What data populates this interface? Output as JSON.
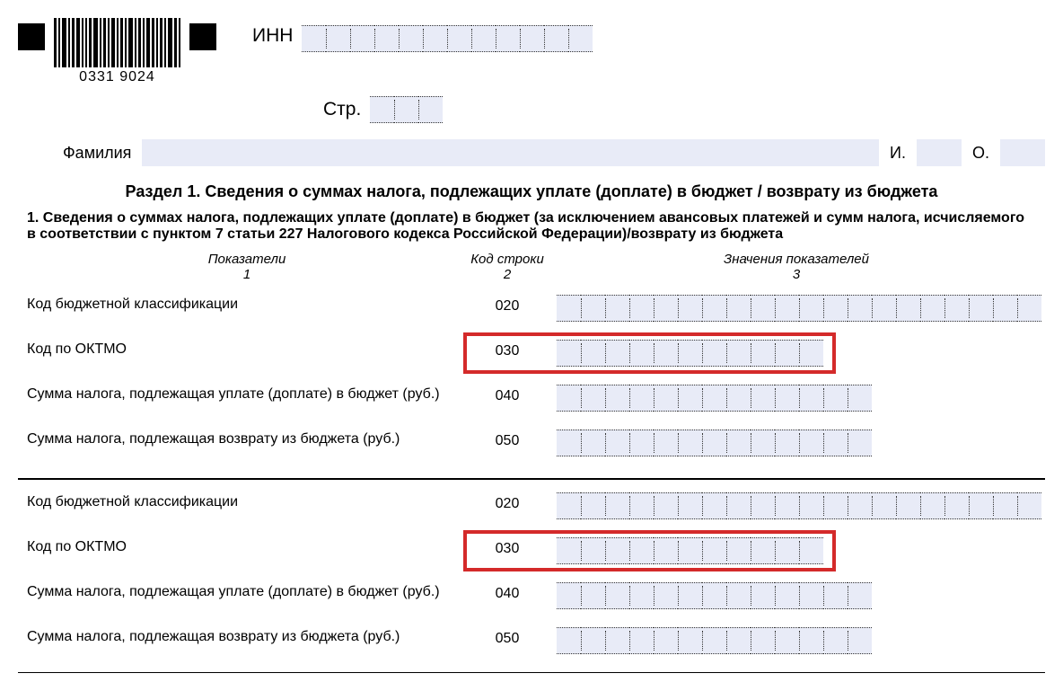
{
  "barcode_number": "0331   9024",
  "labels": {
    "inn": "ИНН",
    "page": "Стр.",
    "surname": "Фамилия",
    "initial_i": "И.",
    "initial_o": "О."
  },
  "section_title": "Раздел 1. Сведения о суммах налога, подлежащих уплате (доплате) в бюджет / возврату из бюджета",
  "sub_title": "1. Сведения о суммах налога, подлежащих уплате (доплате) в бюджет (за исключением авансовых платежей и сумм налога, исчисляемого в соответствии с пунктом 7 статьи 227 Налогового кодекса Российской Федерации)/возврату из бюджета",
  "columns": {
    "c1_title": "Показатели",
    "c1_num": "1",
    "c2_title": "Код строки",
    "c2_num": "2",
    "c3_title": "Значения показателей",
    "c3_num": "3"
  },
  "rows": [
    {
      "label": "Код бюджетной классификации",
      "code": "020",
      "cells": 20,
      "highlight": false
    },
    {
      "label": "Код по ОКТМО",
      "code": "030",
      "cells": 11,
      "highlight": true
    },
    {
      "label": "Сумма налога, подлежащая уплате (доплате) в бюджет (руб.)",
      "code": "040",
      "cells": 13,
      "highlight": false
    },
    {
      "label": "Сумма налога, подлежащая возврату из бюджета (руб.)",
      "code": "050",
      "cells": 13,
      "highlight": false
    }
  ],
  "rows2": [
    {
      "label": "Код бюджетной классификации",
      "code": "020",
      "cells": 20,
      "highlight": false
    },
    {
      "label": "Код по ОКТМО",
      "code": "030",
      "cells": 11,
      "highlight": true
    },
    {
      "label": "Сумма налога, подлежащая уплате (доплате) в бюджет (руб.)",
      "code": "040",
      "cells": 13,
      "highlight": false
    },
    {
      "label": "Сумма налога, подлежащая возврату из бюджета (руб.)",
      "code": "050",
      "cells": 13,
      "highlight": false
    }
  ],
  "inn_cells": 12,
  "page_cells": 3,
  "colors": {
    "field_bg": "#e8ebf7",
    "highlight_border": "#d42a2a"
  }
}
